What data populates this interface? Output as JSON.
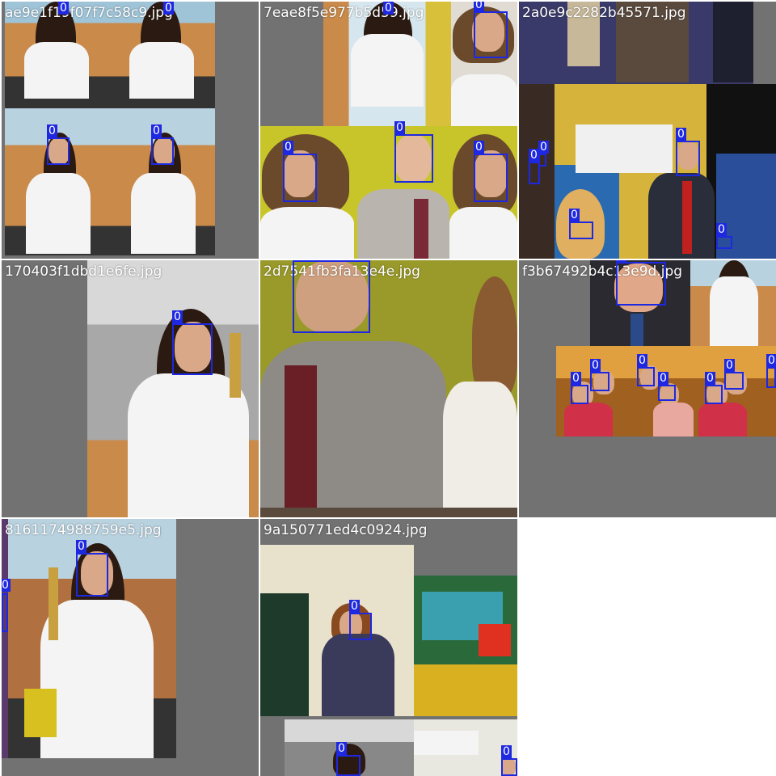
{
  "mosaic": {
    "label_color": "#1e28e0",
    "tiles": [
      {
        "filename": "ae9e1f19f07f7c58c9.jpg",
        "labels": [
          "0",
          "0",
          "0",
          "0",
          "0",
          "0"
        ]
      },
      {
        "filename": "7eae8f5e977b5d59.jpg",
        "labels": [
          "0",
          "0",
          "0",
          "0",
          "0"
        ]
      },
      {
        "filename": "2a0e9c2282b45571.jpg",
        "labels": [
          "0",
          "0",
          "0",
          "0",
          "0",
          "0"
        ]
      },
      {
        "filename": "170403f1dbd1e6fe.jpg",
        "labels": [
          "0"
        ]
      },
      {
        "filename": "2d7541fb3fa13e4e.jpg",
        "labels": [
          "0"
        ]
      },
      {
        "filename": "f3b67492b4c13e9d.jpg",
        "labels": [
          "0",
          "0",
          "0",
          "0",
          "0",
          "0",
          "0",
          "0"
        ]
      },
      {
        "filename": "8161174988759e5.jpg",
        "labels": [
          "0",
          "0"
        ]
      },
      {
        "filename": "9a150771ed4c0924.jpg",
        "labels": [
          "0",
          "0",
          "0"
        ]
      }
    ]
  }
}
